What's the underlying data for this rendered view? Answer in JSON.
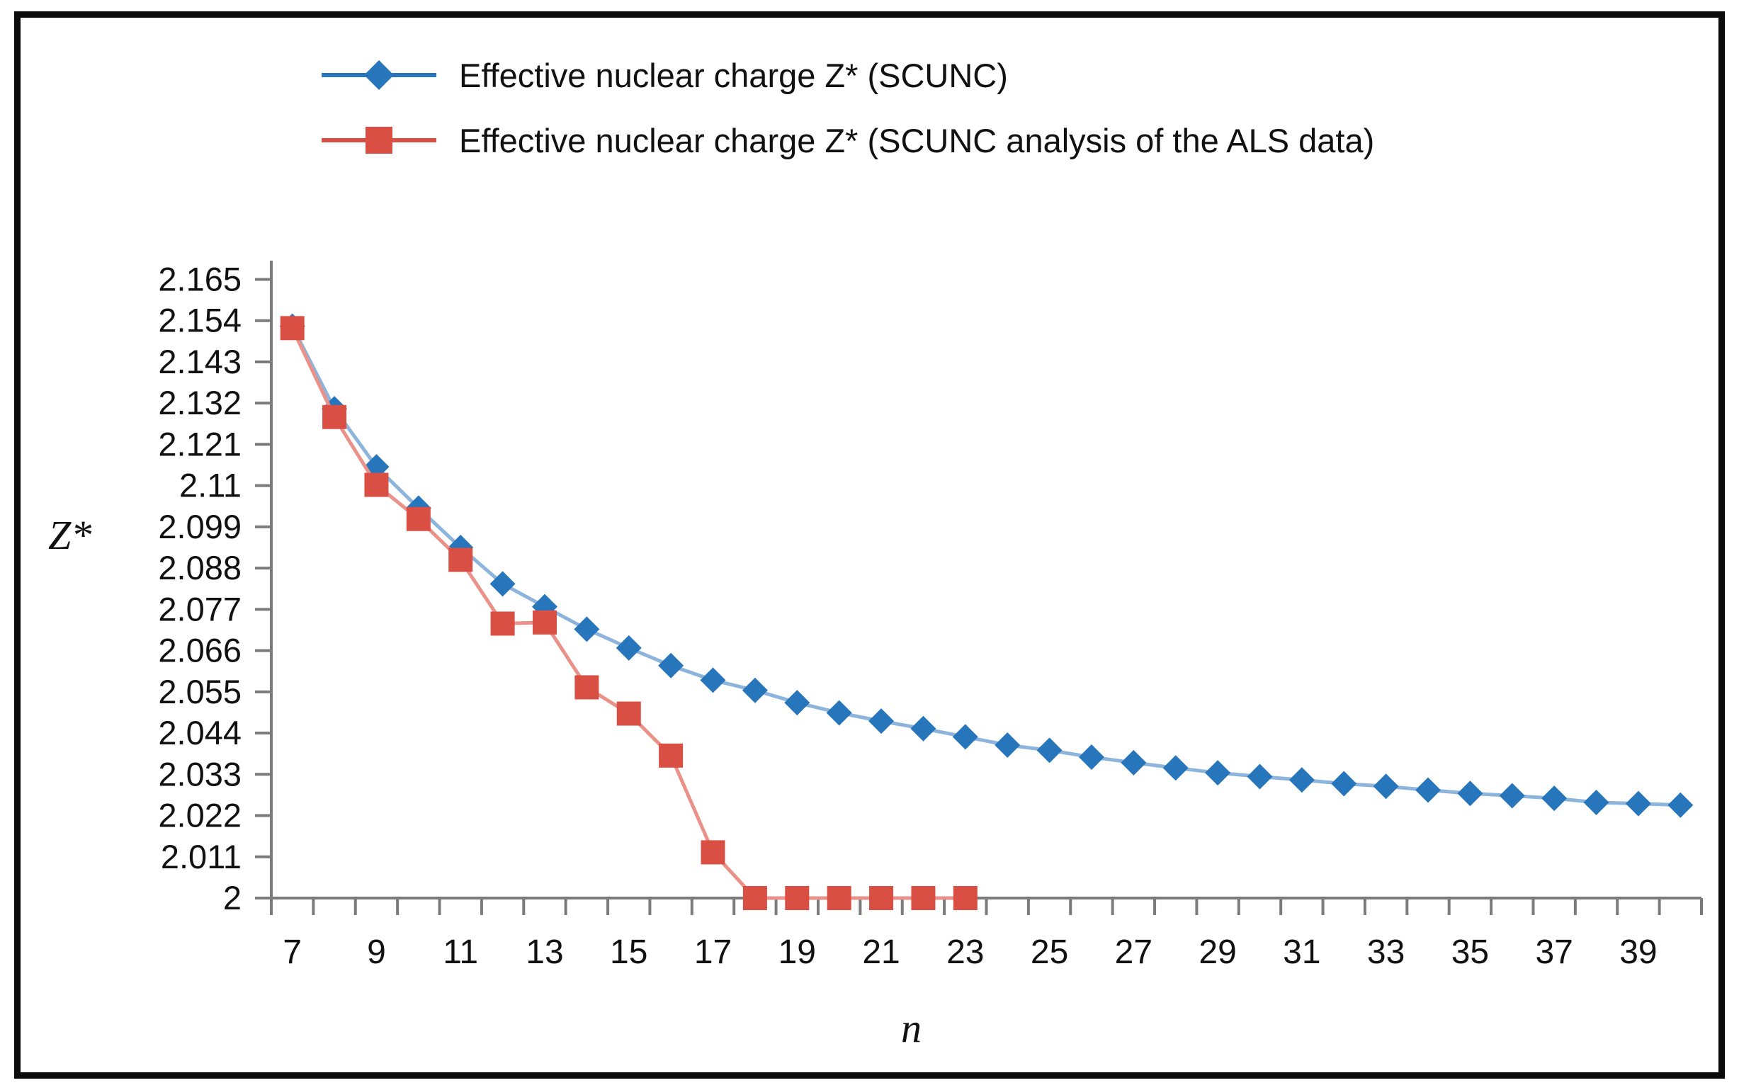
{
  "chart_data": {
    "type": "line",
    "title": "",
    "xlabel": "n",
    "ylabel": "Z*",
    "legend_position": "top-left",
    "grid": false,
    "axis_color": "#7b7b7b",
    "tick_label_color": "#111111",
    "xlim_categories": [
      7,
      40
    ],
    "ylim": [
      2.0,
      2.17
    ],
    "y_tick_values": [
      2,
      2.011,
      2.022,
      2.033,
      2.044,
      2.055,
      2.066,
      2.077,
      2.088,
      2.099,
      2.11,
      2.121,
      2.132,
      2.143,
      2.154,
      2.165
    ],
    "y_tick_labels": [
      "2",
      "2.011",
      "2.022",
      "2.033",
      "2.044",
      "2.055",
      "2.066",
      "2.077",
      "2.088",
      "2.099",
      "2.11",
      "2.121",
      "2.132",
      "2.143",
      "2.154",
      "2.165"
    ],
    "x_tick_labels": [
      "7",
      "9",
      "11",
      "13",
      "15",
      "17",
      "19",
      "21",
      "23",
      "25",
      "27",
      "29",
      "31",
      "33",
      "35",
      "37",
      "39"
    ],
    "series": [
      {
        "name": "Effective nuclear charge Z* (SCUNC)",
        "color": "#2776bc",
        "line_tint": "#8db4dc",
        "marker": "diamond",
        "x": [
          7,
          8,
          9,
          10,
          11,
          12,
          13,
          14,
          15,
          16,
          17,
          18,
          19,
          20,
          21,
          22,
          23,
          24,
          25,
          26,
          27,
          28,
          29,
          30,
          31,
          32,
          33,
          34,
          35,
          36,
          37,
          38,
          39,
          40
        ],
        "values": [
          2.1525,
          2.1305,
          2.115,
          2.104,
          2.0935,
          2.0838,
          2.0777,
          2.0717,
          2.0667,
          2.062,
          2.0581,
          2.0554,
          2.0521,
          2.0494,
          2.0472,
          2.0452,
          2.043,
          2.0408,
          2.0394,
          2.0376,
          2.0361,
          2.0347,
          2.0334,
          2.0324,
          2.0315,
          2.0305,
          2.0298,
          2.0288,
          2.0279,
          2.0273,
          2.0266,
          2.0255,
          2.0252,
          2.0248
        ]
      },
      {
        "name": "Effective nuclear charge Z* (SCUNC analysis of the ALS data)",
        "color": "#d94f43",
        "line_tint": "#ea9189",
        "marker": "square",
        "x": [
          7,
          8,
          9,
          10,
          11,
          12,
          13,
          14,
          15,
          16,
          17,
          18,
          19,
          20,
          21,
          22,
          23
        ],
        "values": [
          2.152,
          2.1283,
          2.1102,
          2.1011,
          2.0902,
          2.0732,
          2.0735,
          2.0562,
          2.0492,
          2.038,
          2.0122,
          2.0,
          2.0,
          2.0,
          2.0,
          2.0,
          2.0
        ]
      }
    ]
  }
}
